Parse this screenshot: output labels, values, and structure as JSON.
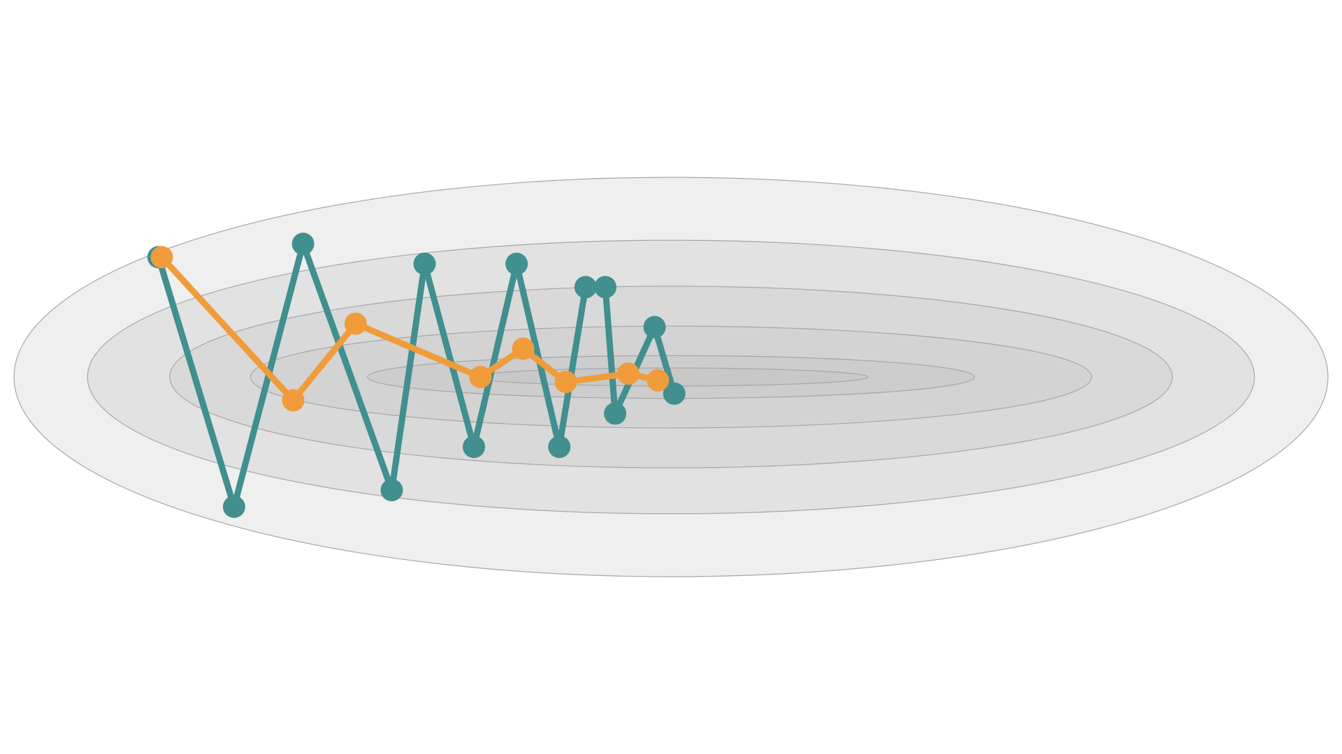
{
  "figure": {
    "kind": "optimization-paths-on-contours",
    "contours": {
      "levels": 6,
      "fill_colors": [
        "#efefef",
        "#e2e2e2",
        "#d9d9d9",
        "#d3d3d3",
        "#cdcdcd",
        "#c8c8c8"
      ],
      "stroke_color": "#a6a6a6"
    },
    "colors": {
      "teal": "#418f8f",
      "orange": "#f09c3a"
    }
  },
  "chart_data": {
    "type": "line",
    "title": "",
    "xlabel": "",
    "ylabel": "",
    "grid": false,
    "xlim": [
      -1,
      1
    ],
    "ylim": [
      -0.6,
      0.6
    ],
    "series": [
      {
        "color": "#418f8f",
        "x": [
          -0.78,
          -0.665,
          -0.56,
          -0.425,
          -0.375,
          -0.3,
          -0.235,
          -0.17,
          -0.13,
          -0.1,
          -0.085,
          -0.025,
          0.005
        ],
        "y": [
          0.36,
          -0.39,
          0.4,
          -0.34,
          0.34,
          -0.21,
          0.34,
          -0.21,
          0.27,
          0.27,
          -0.11,
          0.15,
          -0.05
        ]
      },
      {
        "color": "#f09c3a",
        "x": [
          -0.775,
          -0.575,
          -0.48,
          -0.29,
          -0.225,
          -0.16,
          -0.065,
          -0.02
        ],
        "y": [
          0.36,
          -0.07,
          0.16,
          0.0,
          0.085,
          -0.015,
          0.01,
          -0.01
        ]
      }
    ]
  }
}
